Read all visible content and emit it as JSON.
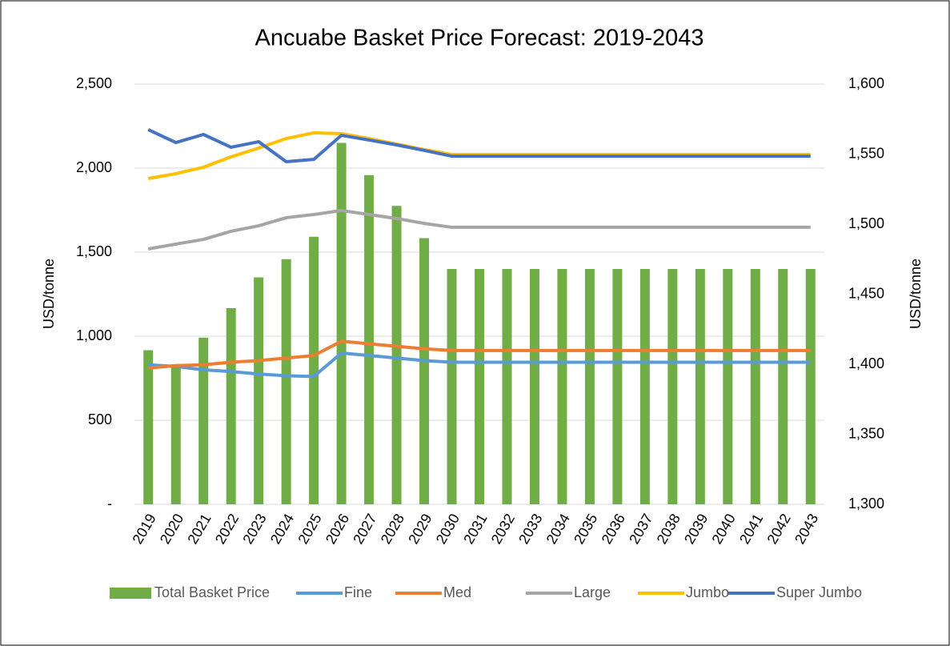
{
  "chart_data": {
    "type": "combo",
    "title": "Ancuabe Basket Price Forecast: 2019-2043",
    "y_label": "USD/tonne",
    "y2_label": "USD/tonne",
    "categories": [
      "2019",
      "2020",
      "2021",
      "2022",
      "2023",
      "2024",
      "2025",
      "2026",
      "2027",
      "2028",
      "2029",
      "2030",
      "2031",
      "2032",
      "2033",
      "2034",
      "2035",
      "2036",
      "2037",
      "2038",
      "2039",
      "2040",
      "2041",
      "2042",
      "2043"
    ],
    "ylim": [
      0,
      2500
    ],
    "yticks": [
      {
        "value": 0,
        "label": "-"
      },
      500,
      {
        "value": 1000,
        "label": "1,000"
      },
      {
        "value": 1500,
        "label": "1,500"
      },
      {
        "value": 2000,
        "label": "2,000"
      },
      {
        "value": 2500,
        "label": "2,500"
      }
    ],
    "y2lim": [
      1300,
      1600
    ],
    "y2ticks": [
      {
        "value": 1300,
        "label": "1,300"
      },
      {
        "value": 1350,
        "label": "1,350"
      },
      {
        "value": 1400,
        "label": "1,400"
      },
      {
        "value": 1450,
        "label": "1,450"
      },
      {
        "value": 1500,
        "label": "1,500"
      },
      {
        "value": 1550,
        "label": "1,550"
      },
      {
        "value": 1600,
        "label": "1,600"
      }
    ],
    "grid": true,
    "legend": "bottom",
    "series": [
      {
        "name": "Total Basket Price",
        "type": "bar",
        "axis": "y2",
        "color": "#70ad47",
        "values": [
          1410,
          1400,
          1419,
          1440,
          1462,
          1475,
          1491,
          1558,
          1535,
          1513,
          1490,
          1468,
          1468,
          1468,
          1468,
          1468,
          1468,
          1468,
          1468,
          1468,
          1468,
          1468,
          1468,
          1468,
          1468
        ]
      },
      {
        "name": "Fine",
        "type": "line",
        "color": "#5b9bd5",
        "values": [
          830,
          820,
          800,
          790,
          775,
          765,
          760,
          900,
          885,
          870,
          855,
          845,
          845,
          845,
          845,
          845,
          845,
          845,
          845,
          845,
          845,
          845,
          845,
          845,
          845
        ]
      },
      {
        "name": "Med",
        "type": "line",
        "color": "#ed7d31",
        "values": [
          810,
          825,
          830,
          845,
          855,
          870,
          885,
          970,
          955,
          940,
          925,
          915,
          915,
          915,
          915,
          915,
          915,
          915,
          915,
          915,
          915,
          915,
          915,
          915,
          915
        ]
      },
      {
        "name": "Large",
        "type": "line",
        "color": "#a5a5a5",
        "values": [
          1519,
          1548,
          1576,
          1624,
          1657,
          1705,
          1724,
          1748,
          1724,
          1700,
          1671,
          1648,
          1648,
          1648,
          1648,
          1648,
          1648,
          1648,
          1648,
          1648,
          1648,
          1648,
          1648,
          1648,
          1648
        ]
      },
      {
        "name": "Jumbo",
        "type": "line",
        "color": "#ffc000",
        "values": [
          1938,
          1967,
          2005,
          2067,
          2119,
          2176,
          2210,
          2205,
          2176,
          2143,
          2110,
          2081,
          2081,
          2081,
          2081,
          2081,
          2081,
          2081,
          2081,
          2081,
          2081,
          2081,
          2081,
          2081,
          2081
        ]
      },
      {
        "name": "Super Jumbo",
        "type": "line",
        "color": "#4472c4",
        "values": [
          2229,
          2152,
          2200,
          2124,
          2157,
          2038,
          2052,
          2195,
          2167,
          2138,
          2105,
          2071,
          2071,
          2071,
          2071,
          2071,
          2071,
          2071,
          2071,
          2071,
          2071,
          2071,
          2071,
          2071,
          2071
        ]
      }
    ]
  }
}
